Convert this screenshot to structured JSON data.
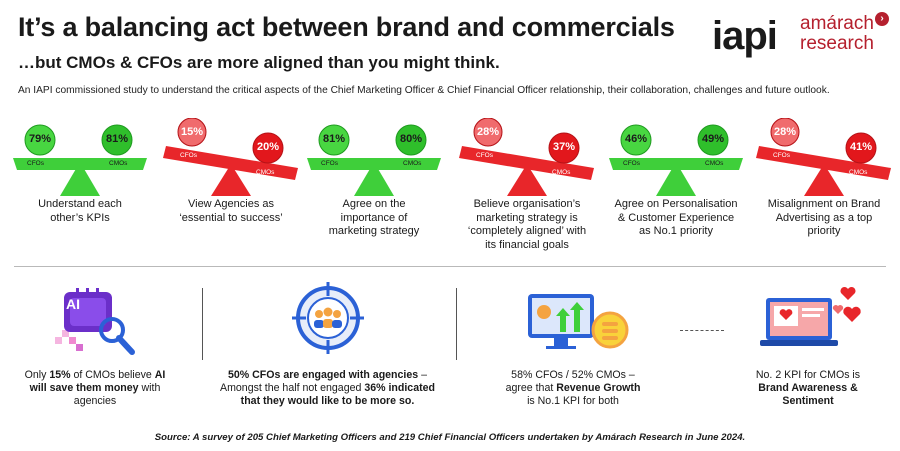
{
  "header": {
    "title": "It’s a balancing act between brand and commercials",
    "subtitle": "…but CMOs & CFOs are more aligned than you might think.",
    "description": "An IAPI commissioned study to understand the critical aspects of the Chief Marketing Officer & Chief Financial Officer relationship, their collaboration, challenges and future outlook."
  },
  "logos": {
    "iapi": "iapi",
    "amarach_line1": "amárach",
    "amarach_line2": "research"
  },
  "scales": [
    {
      "cfo": "79%",
      "cmo": "81%",
      "cfo_label": "CFOs",
      "cmo_label": "CMOs",
      "color": "green",
      "caption": [
        "Understand each",
        "other’s KPIs"
      ]
    },
    {
      "cfo": "15%",
      "cmo": "20%",
      "cfo_label": "CFOs",
      "cmo_label": "CMOs",
      "color": "red",
      "caption": [
        "View Agencies as",
        "‘essential to success’"
      ]
    },
    {
      "cfo": "81%",
      "cmo": "80%",
      "cfo_label": "CFOs",
      "cmo_label": "CMOs",
      "color": "green",
      "caption": [
        "Agree on the",
        "importance of",
        "marketing strategy"
      ]
    },
    {
      "cfo": "28%",
      "cmo": "37%",
      "cfo_label": "CFOs",
      "cmo_label": "CMOs",
      "color": "red",
      "caption": [
        "Believe organisation’s",
        "marketing strategy is",
        "‘completely aligned’ with",
        "its financial goals"
      ]
    },
    {
      "cfo": "46%",
      "cmo": "49%",
      "cfo_label": "CFOs",
      "cmo_label": "CMOs",
      "color": "green",
      "caption": [
        "Agree on Personalisation",
        "& Customer Experience",
        "as No.1 priority"
      ]
    },
    {
      "cfo": "28%",
      "cmo": "41%",
      "cfo_label": "CFOs",
      "cmo_label": "CMOs",
      "color": "red",
      "caption": [
        "Misalignment on Brand",
        "Advertising as a top",
        "priority"
      ]
    }
  ],
  "bottom": {
    "ai_icon_text": "AI",
    "ai_caption_1": "Only ",
    "ai_caption_2": "15%",
    "ai_caption_3": " of CMOs believe ",
    "ai_caption_4": "AI",
    "ai_caption_5": "will save them money",
    "ai_caption_6": " with",
    "ai_caption_7": "agencies",
    "agency_line1": "50% CFOs are engaged with agencies",
    "agency_line1b": " –",
    "agency_line2a": "Amongst the half not engaged ",
    "agency_line2b": "36% indicated",
    "agency_line3": "that they would like to be more so.",
    "rev_line1": "58% CFOs / 52% CMOs –",
    "rev_line2a": "agree that ",
    "rev_line2b": "Revenue Growth",
    "rev_line3": "is No.1 KPI for both",
    "brand_line1": "No. 2 KPI for CMOs is",
    "brand_line2": "Brand Awareness &",
    "brand_line3": "Sentiment"
  },
  "source": "Source: A survey of 205 Chief Marketing Officers and 219 Chief Financial Officers undertaken by Amárach Research  in June 2024.",
  "colors": {
    "green": "#3fcf3a",
    "green_dark": "#1e9a1f",
    "red": "#e8262a",
    "red_dark": "#b51217"
  }
}
